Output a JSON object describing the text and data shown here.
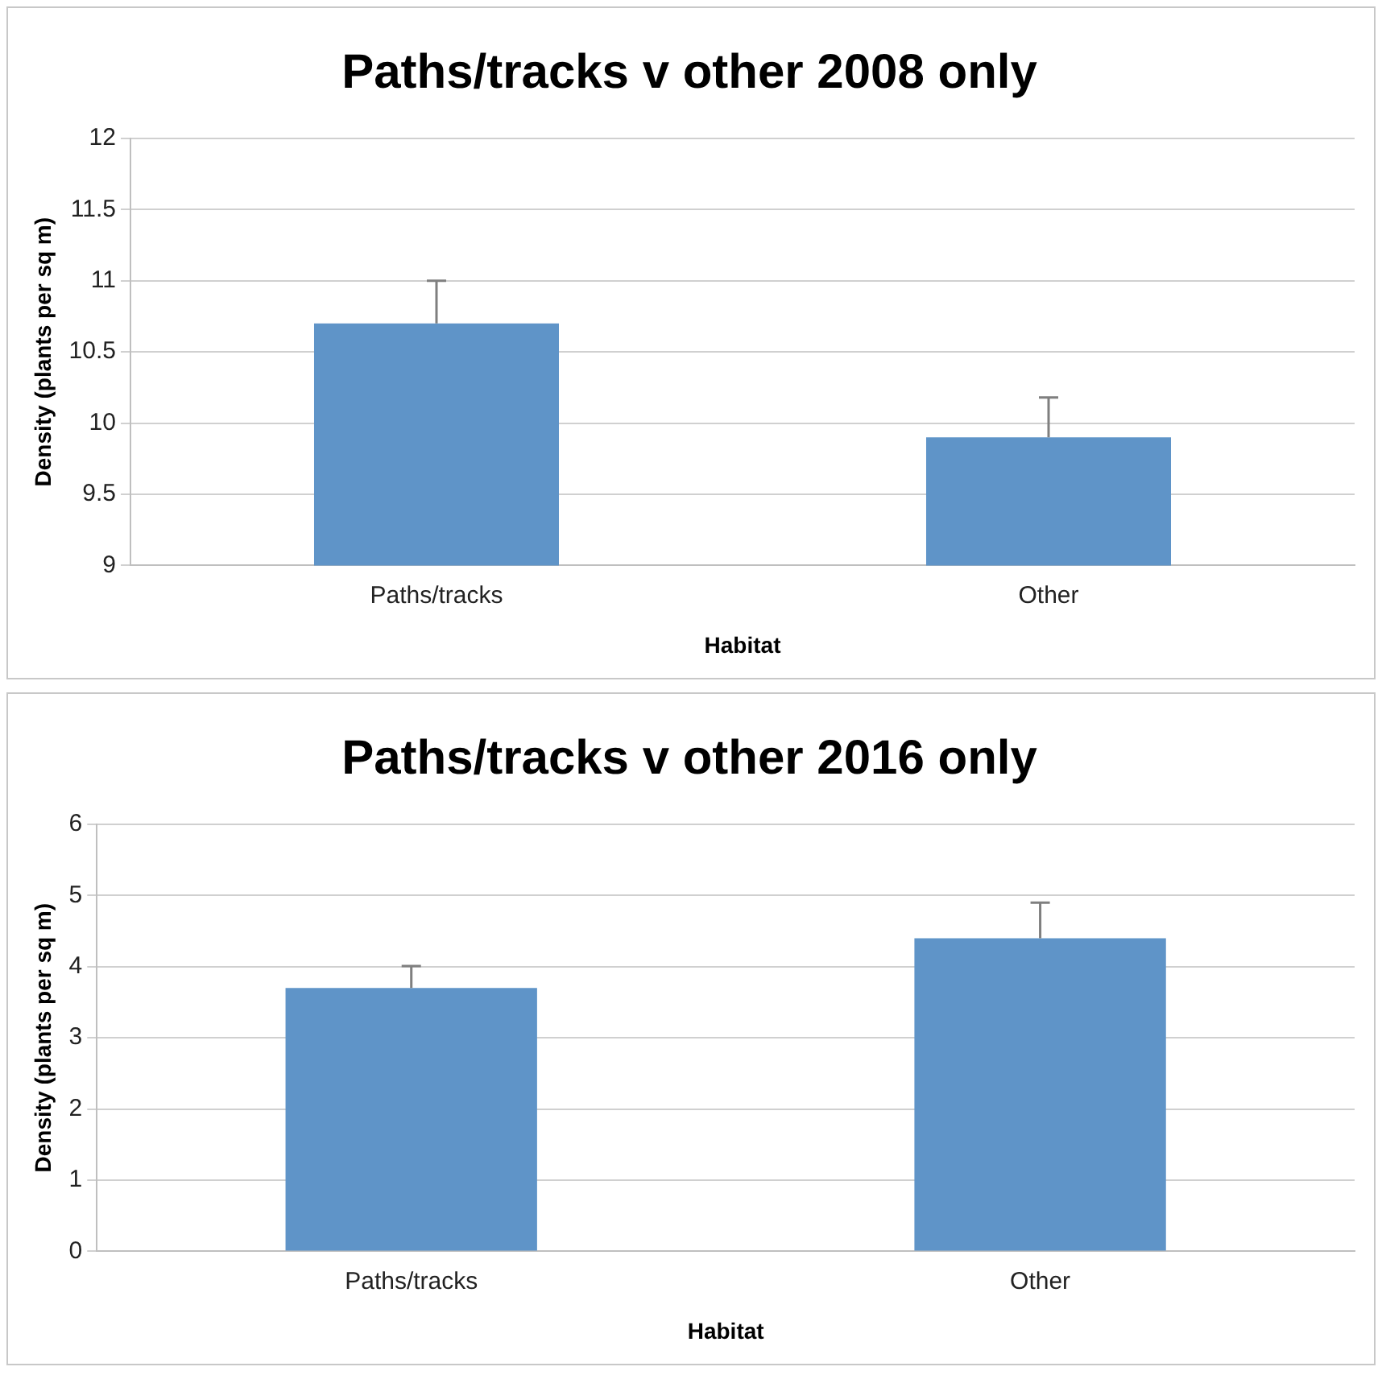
{
  "chart_data": [
    {
      "type": "bar",
      "title": "Paths/tracks v other 2008 only",
      "xlabel": "Habitat",
      "ylabel": "Density (plants per sq m)",
      "categories": [
        "Paths/tracks",
        "Other"
      ],
      "values": [
        10.7,
        9.9
      ],
      "errors": [
        [
          10.7,
          11.0
        ],
        [
          9.9,
          10.18
        ]
      ],
      "color": "#5f94c8",
      "ylim": [
        9,
        12
      ],
      "yticks": [
        9,
        9.5,
        10,
        10.5,
        11,
        11.5,
        12
      ],
      "grid": "y",
      "legend": false
    },
    {
      "type": "bar",
      "title": "Paths/tracks v other 2016 only",
      "xlabel": "Habitat",
      "ylabel": "Density (plants per sq m)",
      "categories": [
        "Paths/tracks",
        "Other"
      ],
      "values": [
        3.7,
        4.4
      ],
      "errors": [
        [
          3.7,
          4.01
        ],
        [
          4.4,
          4.9
        ]
      ],
      "color": "#5f94c8",
      "ylim": [
        0,
        6
      ],
      "yticks": [
        0,
        1,
        2,
        3,
        4,
        5,
        6
      ],
      "grid": "y",
      "legend": false
    }
  ]
}
